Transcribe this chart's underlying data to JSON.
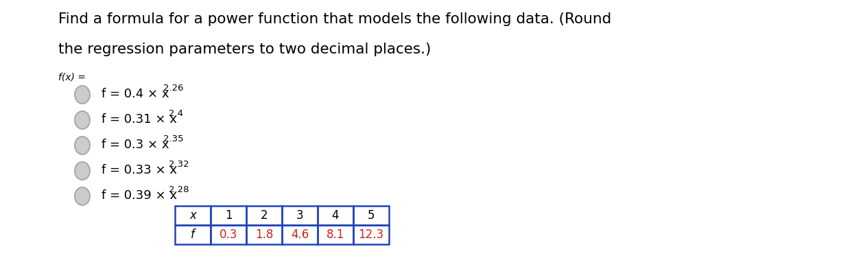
{
  "title_line1": "Find a formula for a power function that models the following data. (Round",
  "title_line2": "the regression parameters to two decimal places.)",
  "fx_label": "f(x) =",
  "options": [
    {
      "main": "f = 0.4 × x",
      "exp": "2.26"
    },
    {
      "main": "f = 0.31 × x",
      "exp": "2.4"
    },
    {
      "main": "f = 0.3 × x",
      "exp": "2.35"
    },
    {
      "main": "f = 0.33 × x",
      "exp": "2.32"
    },
    {
      "main": "f = 0.39 × x",
      "exp": "2.28"
    }
  ],
  "table_x_values": [
    "x",
    "1",
    "2",
    "3",
    "4",
    "5"
  ],
  "table_f_values": [
    "f",
    "0.3",
    "1.8",
    "4.6",
    "8.1",
    "12.3"
  ],
  "background_color": "#ffffff",
  "text_color": "#000000",
  "radio_color": "#aaaaaa",
  "radio_inner_color": "#cccccc",
  "title_fontsize": 15.5,
  "option_fontsize": 13,
  "fx_fontsize": 10,
  "table_border_color": "#2244bb",
  "table_number_color": "#cc2222",
  "table_text_color": "#000000"
}
